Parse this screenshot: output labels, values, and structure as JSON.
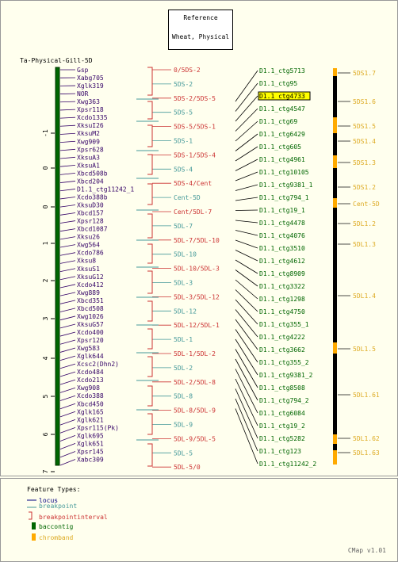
{
  "title": {
    "line1": "Reference",
    "line2": "Wheat, Physical"
  },
  "map_name": "Ta-Physical-Gill-5D",
  "axis_ticks": [
    "-1",
    "0",
    "0",
    "1",
    "2",
    "3",
    "4",
    "5",
    "6",
    "7"
  ],
  "loci": [
    "Gsp",
    "Xabg705",
    "Xglk319",
    "NOR",
    "Xwg363",
    "Xpsr118",
    "Xcdo1335",
    "XksuI26",
    "XksuM2",
    "Xwg909",
    "Xpsr628",
    "XksuA3",
    "XksuA1",
    "Xbcd508b",
    "Xbcd204",
    "D1.1_ctg11242_1",
    "Xcdo388b",
    "XksuD30",
    "Xbcd157",
    "Xpsr128",
    "Xbcd1087",
    "Xksu26",
    "Xwg564",
    "Xcdo786",
    "Xksu8",
    "XksuS1",
    "XksuG12",
    "Xcdo412",
    "Xwg889",
    "Xbcd351",
    "Xbcd508",
    "Xwg1026",
    "XksuG57",
    "Xcdo400",
    "Xpsr120",
    "Xwg583",
    "Xglk644",
    "Xcsc2(Dhn2)",
    "Xcdo484",
    "Xcdo213",
    "Xwg908",
    "Xcdo388",
    "Xbcd450",
    "Xglk165",
    "Xglk621",
    "Xpsr115(Pk)",
    "Xglk695",
    "Xglk651",
    "Xpsr145",
    "Xabc309"
  ],
  "bins": [
    {
      "label": "0/5DS-2",
      "type": "interval"
    },
    {
      "label": "5DS-2",
      "type": "point"
    },
    {
      "label": "5DS-2/5DS-5",
      "type": "interval"
    },
    {
      "label": "5DS-5",
      "type": "point"
    },
    {
      "label": "5DS-5/5DS-1",
      "type": "interval"
    },
    {
      "label": "5DS-1",
      "type": "point"
    },
    {
      "label": "5DS-1/5DS-4",
      "type": "interval"
    },
    {
      "label": "5DS-4",
      "type": "point"
    },
    {
      "label": "5DS-4/Cent",
      "type": "interval"
    },
    {
      "label": "Cent-5D",
      "type": "point"
    },
    {
      "label": "Cent/5DL-7",
      "type": "interval"
    },
    {
      "label": "5DL-7",
      "type": "point"
    },
    {
      "label": "5DL-7/5DL-10",
      "type": "interval"
    },
    {
      "label": "5DL-10",
      "type": "point"
    },
    {
      "label": "5DL-10/5DL-3",
      "type": "interval"
    },
    {
      "label": "5DL-3",
      "type": "point"
    },
    {
      "label": "5DL-3/5DL-12",
      "type": "interval"
    },
    {
      "label": "5DL-12",
      "type": "point"
    },
    {
      "label": "5DL-12/5DL-1",
      "type": "interval"
    },
    {
      "label": "5DL-1",
      "type": "point"
    },
    {
      "label": "5DL-1/5DL-2",
      "type": "interval"
    },
    {
      "label": "5DL-2",
      "type": "point"
    },
    {
      "label": "5DL-2/5DL-8",
      "type": "interval"
    },
    {
      "label": "5DL-8",
      "type": "point"
    },
    {
      "label": "5DL-8/5DL-9",
      "type": "interval"
    },
    {
      "label": "5DL-9",
      "type": "point"
    },
    {
      "label": "5DL-9/5DL-5",
      "type": "interval"
    },
    {
      "label": "5DL-5",
      "type": "point"
    },
    {
      "label": "5DL-5/0",
      "type": "interval"
    }
  ],
  "contigs": [
    {
      "label": "D1.1_ctg5713"
    },
    {
      "label": "D1.1_ctg95"
    },
    {
      "label": "D1.1_ctg4733",
      "highlight": true
    },
    {
      "label": "D1.1_ctg4547"
    },
    {
      "label": "D1.1_ctg69"
    },
    {
      "label": "D1.1_ctg6429"
    },
    {
      "label": "D1.1_ctg605"
    },
    {
      "label": "D1.1_ctg4961"
    },
    {
      "label": "D1.1_ctg10105"
    },
    {
      "label": "D1.1_ctg9381_1"
    },
    {
      "label": "D1.1_ctg794_1"
    },
    {
      "label": "D1.1_ctg19_1"
    },
    {
      "label": "D1.1_ctg4478"
    },
    {
      "label": "D1.1_ctg4076"
    },
    {
      "label": "D1.1_ctg3510"
    },
    {
      "label": "D1.1_ctg4612"
    },
    {
      "label": "D1.1_ctg8909"
    },
    {
      "label": "D1.1_ctg3322"
    },
    {
      "label": "D1.1_ctg1298"
    },
    {
      "label": "D1.1_ctg4750"
    },
    {
      "label": "D1.1_ctg355_1"
    },
    {
      "label": "D1.1_ctg4222"
    },
    {
      "label": "D1.1_ctg3662"
    },
    {
      "label": "D1.1_ctg355_2"
    },
    {
      "label": "D1.1_ctg9381_2"
    },
    {
      "label": "D1.1_ctg8508"
    },
    {
      "label": "D1.1_ctg794_2"
    },
    {
      "label": "D1.1_ctg6084"
    },
    {
      "label": "D1.1_ctg19_2"
    },
    {
      "label": "D1.1_ctg5282"
    },
    {
      "label": "D1.1_ctg123"
    },
    {
      "label": "D1.1_ctg11242_2"
    }
  ],
  "chrombands": [
    "5DS1.7",
    "5DS1.6",
    "5DS1.5",
    "5DS1.4",
    "5DS1.3",
    "5DS1.2",
    "Cent-5D",
    "5DL1.2",
    "5DL1.3",
    "5DL1.4",
    "5DL1.5",
    "5DL1.61",
    "5DL1.62",
    "5DL1.63"
  ],
  "legend": {
    "title": "Feature Types:",
    "items": [
      {
        "label": "locus",
        "color": "#000080"
      },
      {
        "label": "breakpoint",
        "color": "#449999"
      },
      {
        "label": "breakpointinterval",
        "color": "#cc3333"
      },
      {
        "label": "baccontig",
        "color": "#006600"
      },
      {
        "label": "chromband",
        "color": "#ffaa00"
      }
    ]
  },
  "version": "CMap v1.01",
  "colors": {
    "locus": "#330066",
    "breakpoint": "#449999",
    "interval": "#cc3333",
    "contig": "#006600",
    "chromband": "#ddaa22",
    "highlight": "#ffff00"
  }
}
